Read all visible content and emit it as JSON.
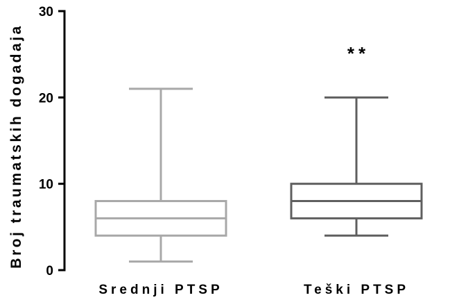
{
  "chart_data": {
    "type": "boxplot",
    "title": "",
    "xlabel": "",
    "ylabel": "Broj traumatskih dogadaja",
    "ylim": [
      0,
      30
    ],
    "yticks": [
      0,
      10,
      20,
      30
    ],
    "grid": false,
    "legend": "none",
    "categories": [
      "Srednji PTSP",
      "Teški PTSP"
    ],
    "series": [
      {
        "min": 1,
        "q1": 4,
        "median": 6,
        "q3": 8,
        "max": 21,
        "color": "#a8a8a8",
        "annotation": ""
      },
      {
        "min": 4,
        "q1": 6,
        "median": 8,
        "q3": 10,
        "max": 20,
        "color": "#5f5f5f",
        "annotation": "**"
      }
    ]
  }
}
